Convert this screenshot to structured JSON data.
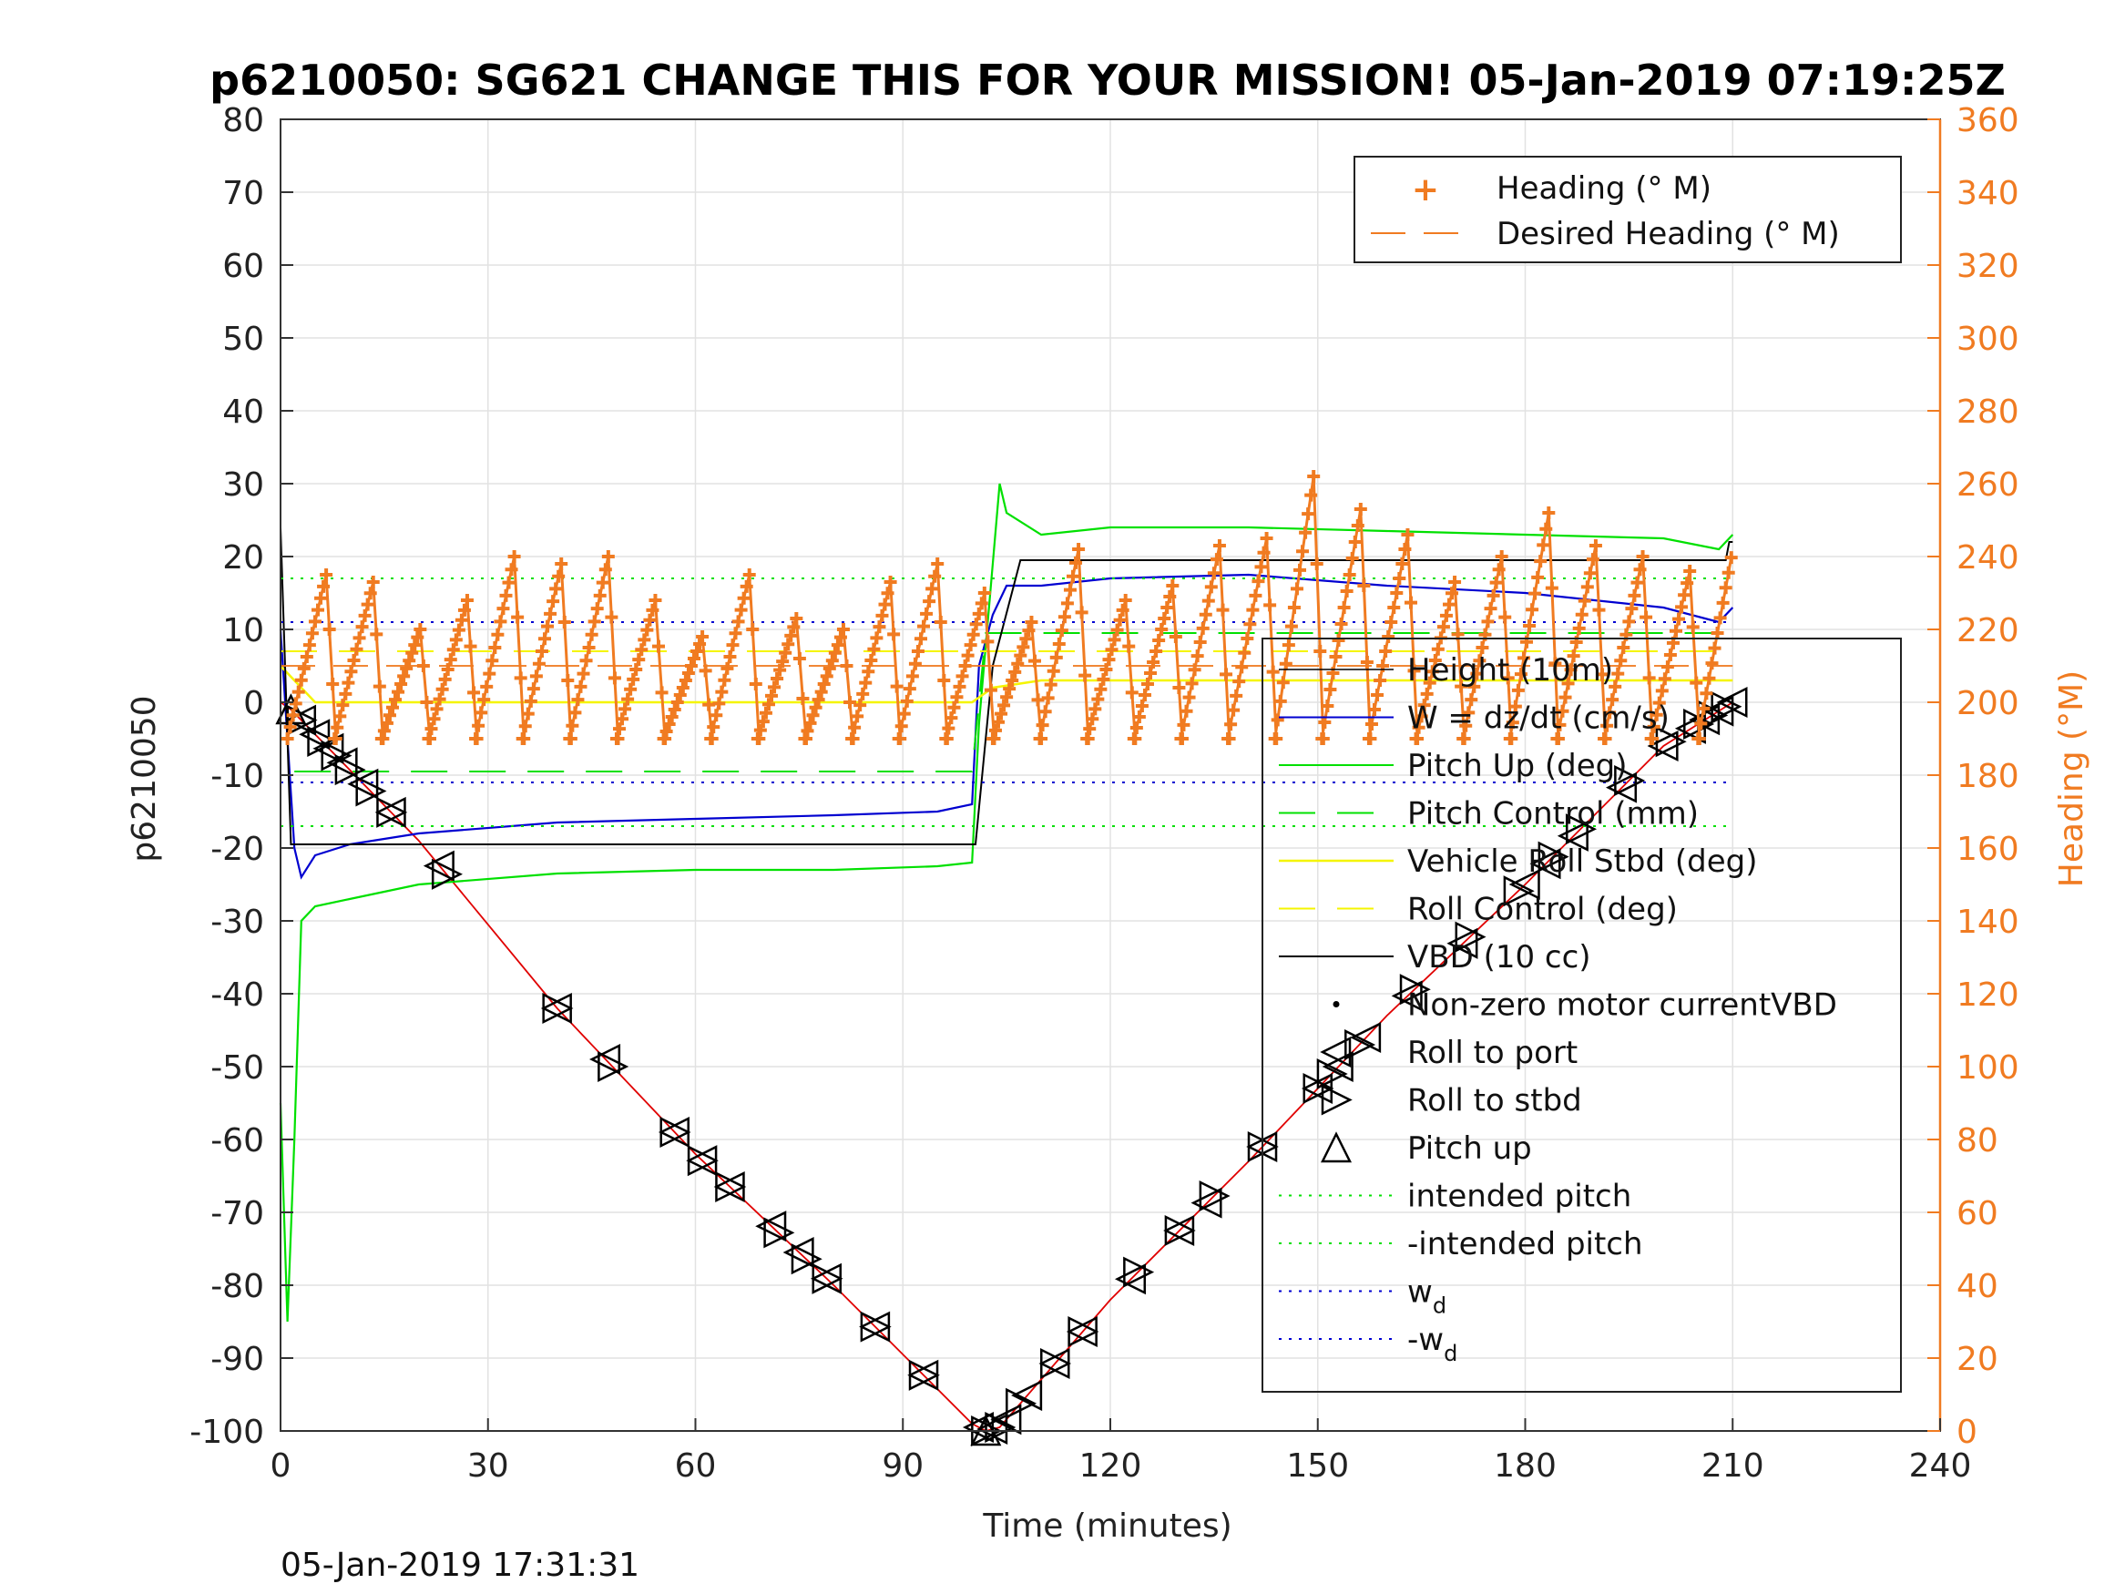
{
  "chart_data": {
    "type": "line",
    "title": "p6210050: SG621 CHANGE THIS FOR YOUR MISSION! 05-Jan-2019 07:19:25Z",
    "xlabel": "Time (minutes)",
    "ylabel": "p6210050",
    "y2label": "Heading (°M)",
    "xlim": [
      0,
      240
    ],
    "ylim": [
      -100,
      80
    ],
    "y2lim": [
      0,
      360
    ],
    "xticks": [
      "0",
      "30",
      "60",
      "90",
      "120",
      "150",
      "180",
      "210",
      "240"
    ],
    "yticks": [
      "80",
      "70",
      "60",
      "50",
      "40",
      "30",
      "20",
      "10",
      "0",
      "-10",
      "-20",
      "-30",
      "-40",
      "-50",
      "-60",
      "-70",
      "-80",
      "-90",
      "-100"
    ],
    "y2ticks": [
      "360",
      "340",
      "320",
      "300",
      "280",
      "260",
      "240",
      "220",
      "200",
      "180",
      "160",
      "140",
      "120",
      "100",
      "80",
      "60",
      "40",
      "20",
      "0"
    ],
    "grid": true,
    "footer": "05-Jan-2019 17:31:31",
    "colors": {
      "heading": "#f07b21",
      "depth": "#e00000",
      "w": "#0000d0",
      "pitch": "#00e000",
      "roll": "#f5f500",
      "vbd": "#000000"
    },
    "legend_top": {
      "placement": "top-right",
      "entries": [
        "Heading (° M)",
        "Desired Heading (° M)"
      ]
    },
    "legend_main": {
      "placement": "bottom-right",
      "entries": [
        "Height (10m)",
        "W = dz/dt (cm/s)",
        "Pitch Up (deg)",
        "Pitch Control (mm)",
        "Vehicle Roll Stbd (deg)",
        "Roll Control (deg)",
        "VBD (10 cc)",
        "Non-zero motor currentVBD",
        "Roll to port",
        "Roll to stbd",
        "Pitch up",
        "intended pitch",
        "-intended pitch",
        "w",
        "-w"
      ],
      "subscript": "d"
    },
    "series": [
      {
        "name": "Height (10m)",
        "x": [
          0,
          1.5,
          20,
          40,
          60,
          80,
          100,
          102,
          104,
          120,
          140,
          160,
          180,
          200,
          210
        ],
        "y": [
          0,
          -1,
          -19,
          -42,
          -62,
          -80,
          -99,
          -100,
          -99.5,
          -82,
          -63,
          -43,
          -25,
          -6,
          0
        ]
      },
      {
        "name": "W = dz/dt (cm/s)",
        "x": [
          0,
          1,
          2,
          3,
          5,
          10,
          20,
          40,
          60,
          80,
          95,
          100,
          101,
          103,
          105,
          110,
          120,
          140,
          160,
          180,
          200,
          208,
          210
        ],
        "y": [
          10,
          -5,
          -20,
          -24,
          -21,
          -19.5,
          -18,
          -16.5,
          -16,
          -15.5,
          -15,
          -14,
          5,
          12,
          16,
          16,
          17,
          17.5,
          16,
          15,
          13,
          11,
          13
        ]
      },
      {
        "name": "Pitch Up (deg)",
        "x": [
          0,
          1,
          2,
          3,
          5,
          10,
          20,
          40,
          60,
          80,
          95,
          100,
          101,
          104,
          105,
          110,
          120,
          140,
          160,
          180,
          200,
          208,
          210
        ],
        "y": [
          -55,
          -85,
          -60,
          -30,
          -28,
          -27,
          -25,
          -23.5,
          -23,
          -23,
          -22.5,
          -22,
          -3,
          30,
          26,
          23,
          24,
          24,
          23.5,
          23,
          22.5,
          21,
          23
        ]
      },
      {
        "name": "Pitch Control (mm)",
        "x": [
          2,
          100,
          102,
          210
        ],
        "y": [
          -9.5,
          -9.5,
          9.5,
          9.5
        ]
      },
      {
        "name": "Vehicle Roll Stbd (deg)",
        "x": [
          0,
          5,
          30,
          60,
          90,
          100,
          103,
          110,
          130,
          160,
          190,
          210
        ],
        "y": [
          5,
          0,
          0,
          0,
          0,
          0,
          2,
          3,
          3,
          3,
          3,
          3
        ]
      },
      {
        "name": "Roll Control (deg)",
        "x": [
          0,
          5,
          60,
          100,
          102,
          210
        ],
        "y": [
          7,
          7,
          7,
          7,
          7,
          7
        ]
      },
      {
        "name": "VBD (10 cc)",
        "x": [
          0,
          1.5,
          100.5,
          103,
          107,
          209,
          209.5,
          210
        ],
        "y": [
          24,
          -19.5,
          -19.5,
          5,
          19.5,
          19.5,
          22,
          22
        ]
      },
      {
        "name": "intended pitch",
        "x": [
          0,
          210
        ],
        "y": [
          17,
          17
        ]
      },
      {
        "name": "-intended pitch",
        "x": [
          0,
          210
        ],
        "y": [
          -17,
          -17
        ]
      },
      {
        "name": "w",
        "x": [
          0,
          210
        ],
        "y": [
          11,
          11
        ]
      },
      {
        "name": "-w",
        "x": [
          0,
          210
        ],
        "y": [
          -11,
          -11
        ]
      }
    ],
    "heading": {
      "name": "Heading (° M)",
      "desired_value": 210,
      "x_range": [
        0,
        210
      ],
      "osc_period_min": 7,
      "osc_min_deg": 190,
      "osc_peak_deg": [
        235,
        233,
        220,
        228,
        240,
        238,
        240,
        228,
        218,
        235,
        223,
        220,
        233,
        238,
        230,
        222,
        242,
        228,
        232,
        243,
        245,
        262,
        253,
        246,
        233,
        240,
        252,
        243,
        240,
        236,
        248,
        230,
        232,
        250,
        248,
        228
      ],
      "segments": [
        {
          "x0": 0,
          "x1": 5,
          "y0": 190,
          "y1": 180
        }
      ]
    },
    "markers": {
      "roll_to_port_x": [
        3,
        5,
        7,
        9,
        12,
        16,
        23,
        40,
        47,
        57,
        61,
        65,
        71,
        75,
        79,
        86,
        93,
        101,
        103,
        105,
        108,
        112,
        116,
        123,
        130,
        134,
        142,
        150,
        153,
        157,
        163,
        171,
        180,
        183,
        187,
        194,
        200,
        204,
        206,
        208,
        210
      ],
      "roll_to_stbd_x": [
        3,
        6,
        8,
        10,
        13,
        16,
        24,
        40,
        48,
        57,
        61,
        65,
        72,
        76,
        79,
        86,
        93,
        102,
        104,
        107,
        112,
        116,
        124,
        130,
        135,
        142,
        150,
        152,
        156,
        164,
        172,
        179,
        184,
        188,
        195,
        201,
        205,
        207,
        209
      ],
      "pitch_up_x": [
        1.5,
        102
      ]
    }
  }
}
